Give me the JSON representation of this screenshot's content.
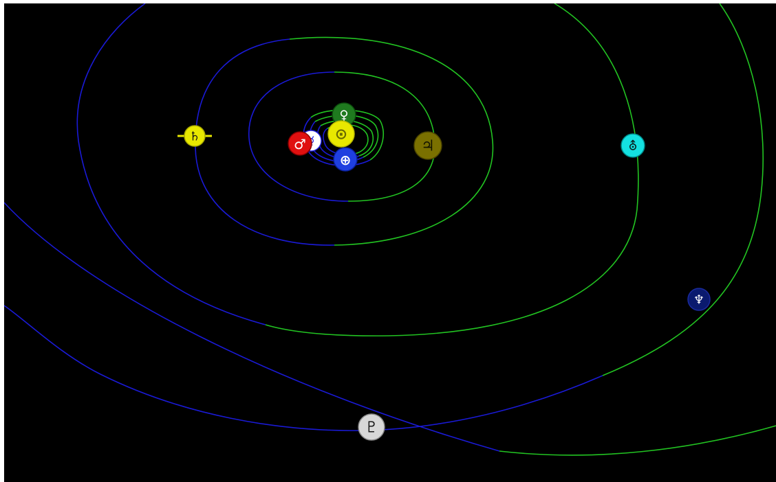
{
  "window": {
    "background": "#000000",
    "frame": "#ffffff"
  },
  "colors": {
    "near_side": "#1a1ad6",
    "far_side": "#22c422"
  },
  "sun": {
    "symbol": "⊙",
    "icon": "sun-icon",
    "fill": "#e8e800",
    "ring": "#b8b800",
    "glyph": "#6a6a00"
  },
  "planets": [
    {
      "key": "mercury",
      "symbol": "☿",
      "icon": "mercury-icon",
      "fill": "#ffffff",
      "ring": "#2020e0",
      "glyph": "#2020e0"
    },
    {
      "key": "venus",
      "symbol": "♀",
      "icon": "venus-icon",
      "fill": "#1f7a1f",
      "ring": "#0d4d0d",
      "glyph": "#ffffff"
    },
    {
      "key": "earth",
      "symbol": "⊕",
      "icon": "earth-icon",
      "fill": "#1f3fe0",
      "ring": "#0a1f99",
      "glyph": "#ffffff"
    },
    {
      "key": "mars",
      "symbol": "♂",
      "icon": "mars-icon",
      "fill": "#e01010",
      "ring": "#8a0000",
      "glyph": "#ffffff"
    },
    {
      "key": "jupiter",
      "symbol": "♃",
      "icon": "jupiter-icon",
      "fill": "#7a7000",
      "ring": "#4d4600",
      "glyph": "#141400"
    },
    {
      "key": "saturn",
      "symbol": "♄",
      "icon": "saturn-icon",
      "fill": "#e8e800",
      "ring": "#a8a800",
      "glyph": "#141414"
    },
    {
      "key": "uranus",
      "symbol": "⛢",
      "icon": "uranus-icon",
      "fill": "#14e0e0",
      "ring": "#008a8a",
      "glyph": "#0a1a1a"
    },
    {
      "key": "neptune",
      "symbol": "♆",
      "icon": "neptune-icon",
      "fill": "#0a1a6e",
      "ring": "#1a2a9e",
      "glyph": "#ffffff"
    },
    {
      "key": "pluto",
      "symbol": "♇",
      "icon": "pluto-icon",
      "fill": "#d8d8d8",
      "ring": "#8a8a8a",
      "glyph": "#1a1a1a"
    }
  ]
}
